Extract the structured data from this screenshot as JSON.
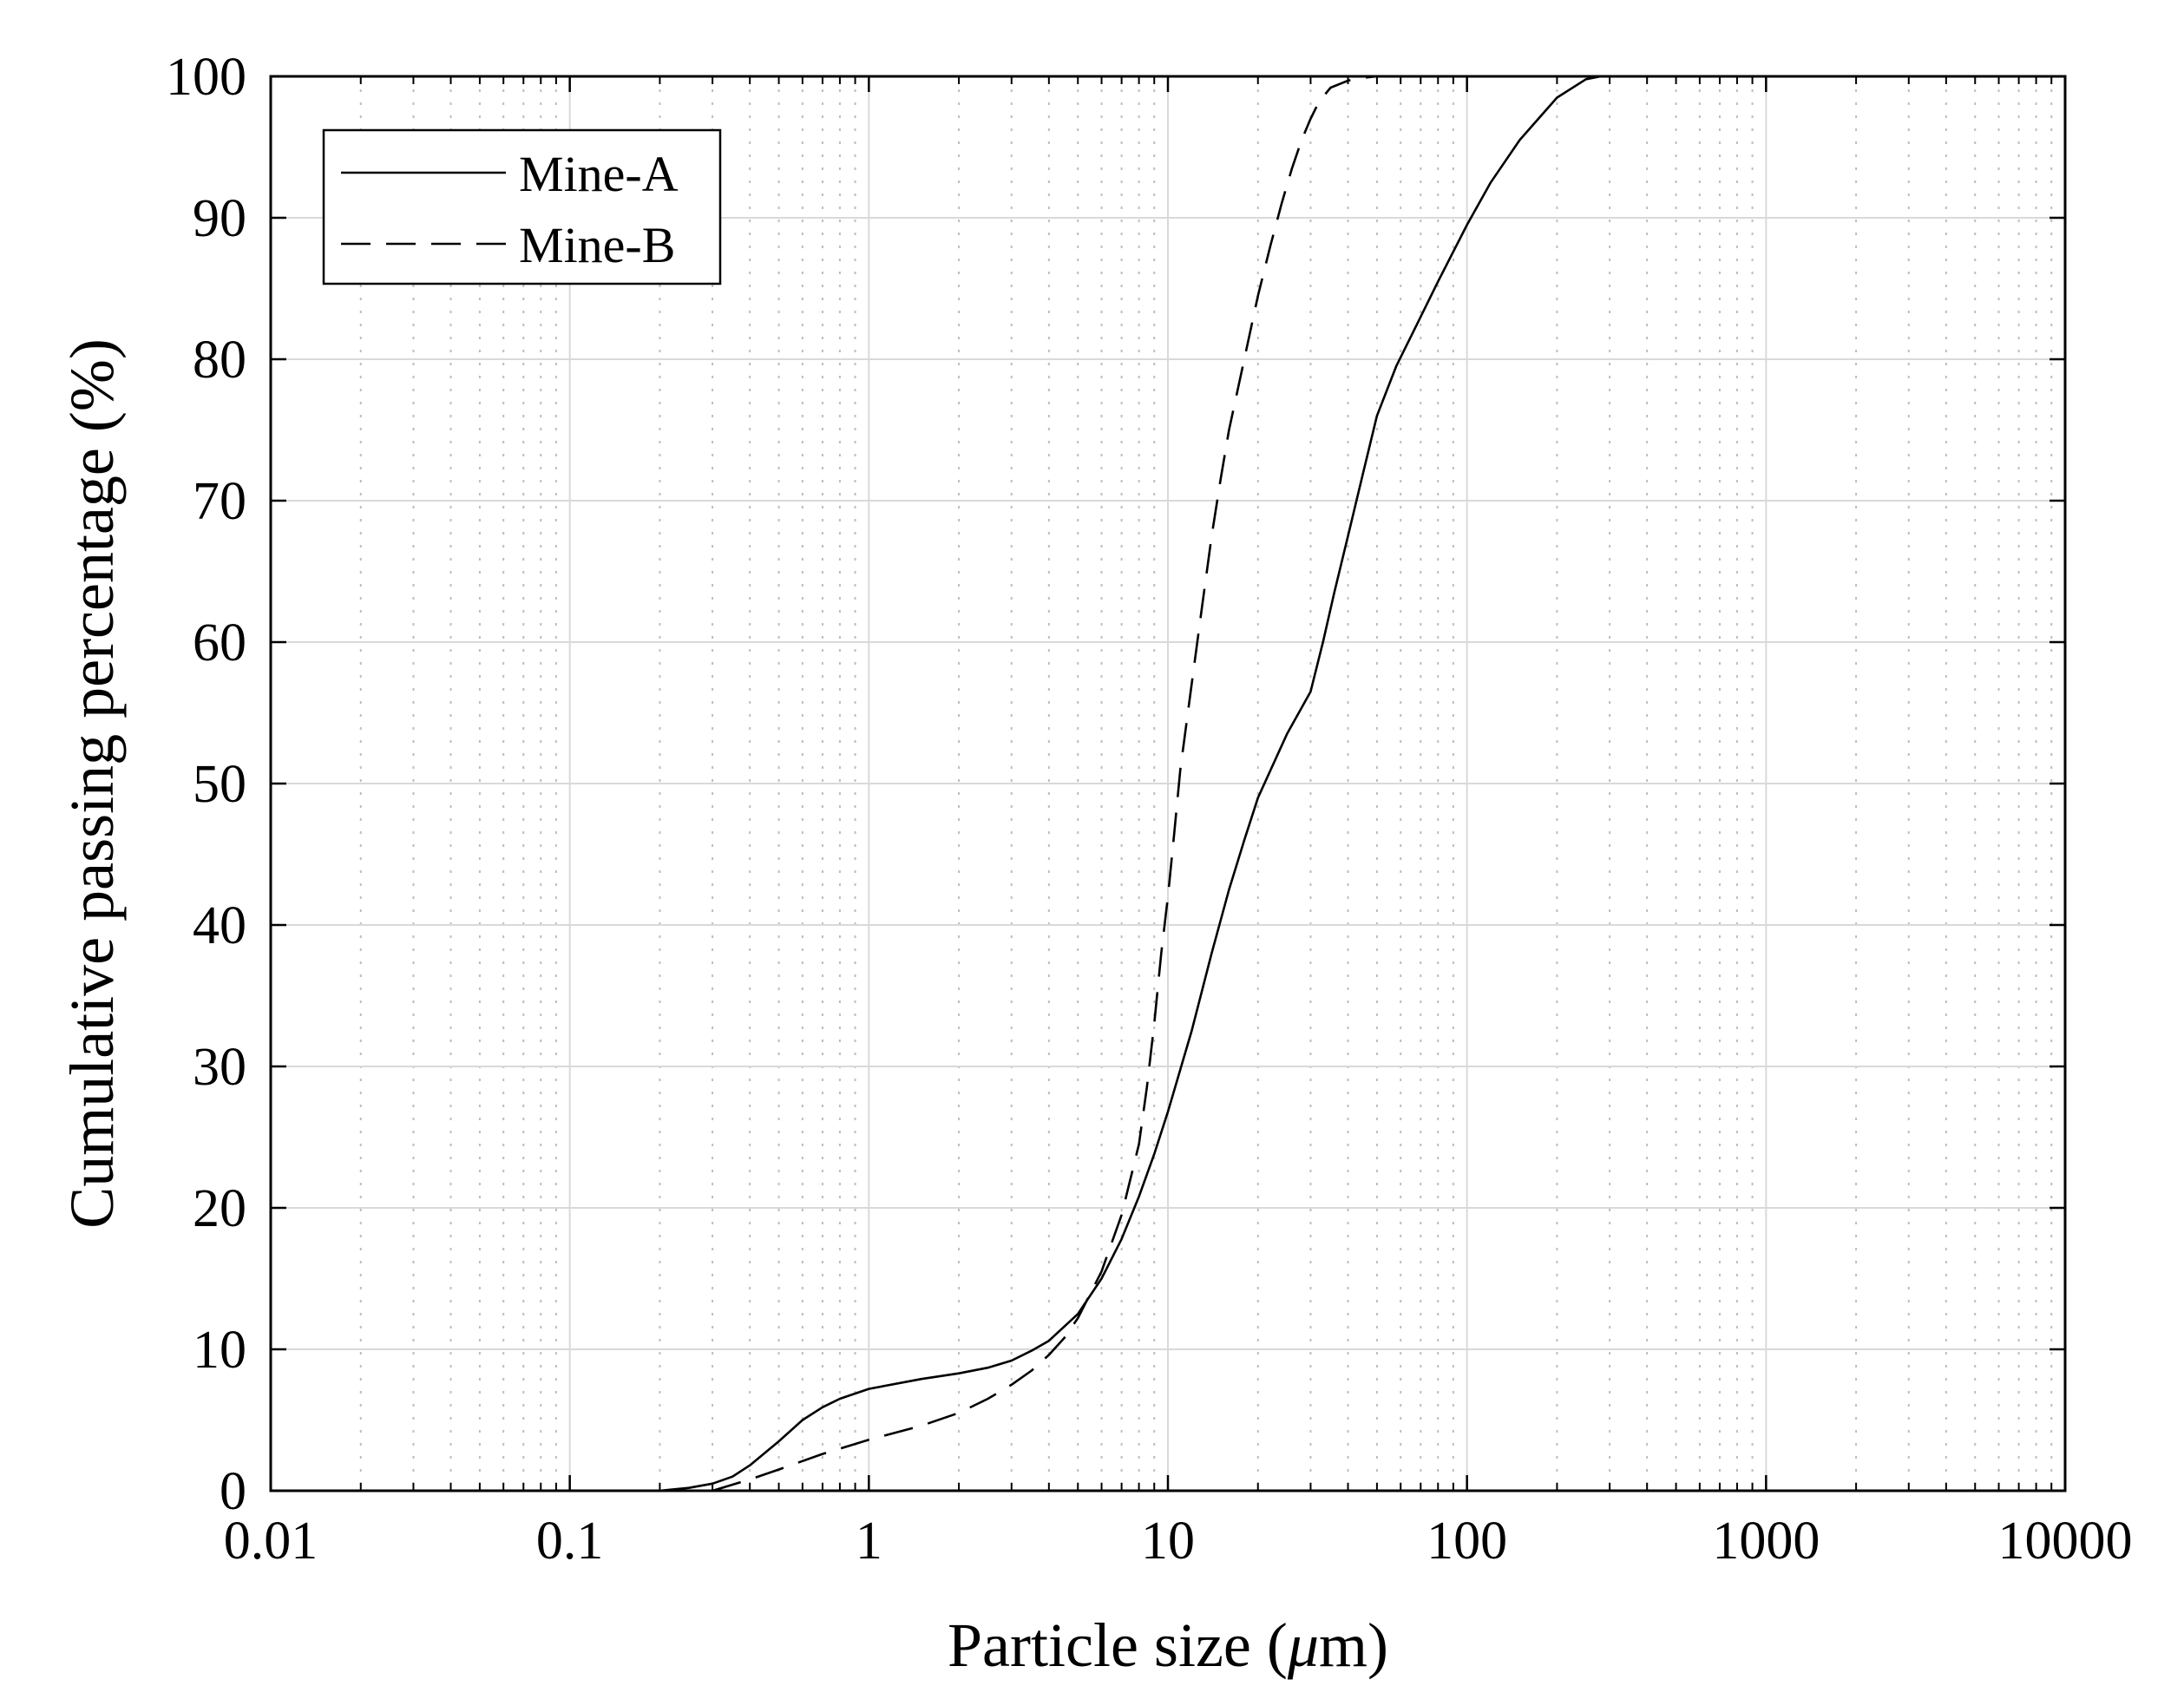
{
  "chart_data": {
    "type": "line",
    "title": "",
    "xlabel": "Particle size (μm)",
    "xlabel_parts": {
      "before": "Particle size (",
      "mu": "μ",
      "after": "m)"
    },
    "ylabel": "Cumulative passing percentage (%)",
    "xscale": "log",
    "xlim": [
      0.01,
      10000
    ],
    "ylim": [
      0,
      100
    ],
    "grid": true,
    "minor_grid": true,
    "legend_position": "top-left",
    "x_ticks": [
      0.01,
      0.1,
      1,
      10,
      100,
      1000,
      10000
    ],
    "x_tick_labels": [
      "0.01",
      "0.1",
      "1",
      "10",
      "100",
      "1000",
      "10000"
    ],
    "y_ticks": [
      0,
      10,
      20,
      30,
      40,
      50,
      60,
      70,
      80,
      90,
      100
    ],
    "y_tick_labels": [
      "0",
      "10",
      "20",
      "30",
      "40",
      "50",
      "60",
      "70",
      "80",
      "90",
      "100"
    ],
    "series": [
      {
        "name": "Mine-A",
        "style": "solid",
        "x": [
          0.2,
          0.25,
          0.3,
          0.35,
          0.4,
          0.5,
          0.6,
          0.7,
          0.8,
          1.0,
          1.5,
          2.0,
          2.5,
          3.0,
          3.5,
          4.0,
          5.0,
          6.0,
          7.0,
          8.0,
          9.0,
          10,
          12,
          14,
          16,
          18,
          20,
          25,
          30,
          33,
          36,
          40,
          45,
          50,
          58,
          70,
          80,
          100,
          120,
          150,
          200,
          250,
          280
        ],
        "y": [
          0,
          0.2,
          0.5,
          1.0,
          1.8,
          3.5,
          5.0,
          5.9,
          6.5,
          7.2,
          7.9,
          8.3,
          8.7,
          9.2,
          9.9,
          10.6,
          12.5,
          15.0,
          17.8,
          20.8,
          23.8,
          26.8,
          32.5,
          38.0,
          42.5,
          46.0,
          49.0,
          53.5,
          56.5,
          60.0,
          63.5,
          67.5,
          72.0,
          76.0,
          79.5,
          83.0,
          85.5,
          89.5,
          92.5,
          95.5,
          98.5,
          99.8,
          100
        ]
      },
      {
        "name": "Mine-B",
        "style": "dashed",
        "x": [
          0.3,
          0.4,
          0.5,
          0.7,
          1.0,
          1.5,
          2.0,
          2.5,
          3.0,
          3.5,
          4.0,
          4.5,
          5.0,
          6.0,
          7.0,
          8.0,
          8.5,
          9.0,
          9.5,
          10.0,
          10.5,
          11,
          12,
          13,
          14,
          15,
          16,
          18,
          20,
          22,
          24,
          26,
          28,
          30,
          32,
          35,
          40,
          45,
          50
        ],
        "y": [
          0,
          0.8,
          1.5,
          2.6,
          3.6,
          4.6,
          5.5,
          6.5,
          7.5,
          8.5,
          9.6,
          10.8,
          12.2,
          15.5,
          19.5,
          24.5,
          28.5,
          33.0,
          38.0,
          42.0,
          46.5,
          51.0,
          57.0,
          62.5,
          67.5,
          71.5,
          75.0,
          80.0,
          84.5,
          88.0,
          91.0,
          93.5,
          95.5,
          97.0,
          98.2,
          99.2,
          99.7,
          99.9,
          100
        ]
      }
    ]
  }
}
